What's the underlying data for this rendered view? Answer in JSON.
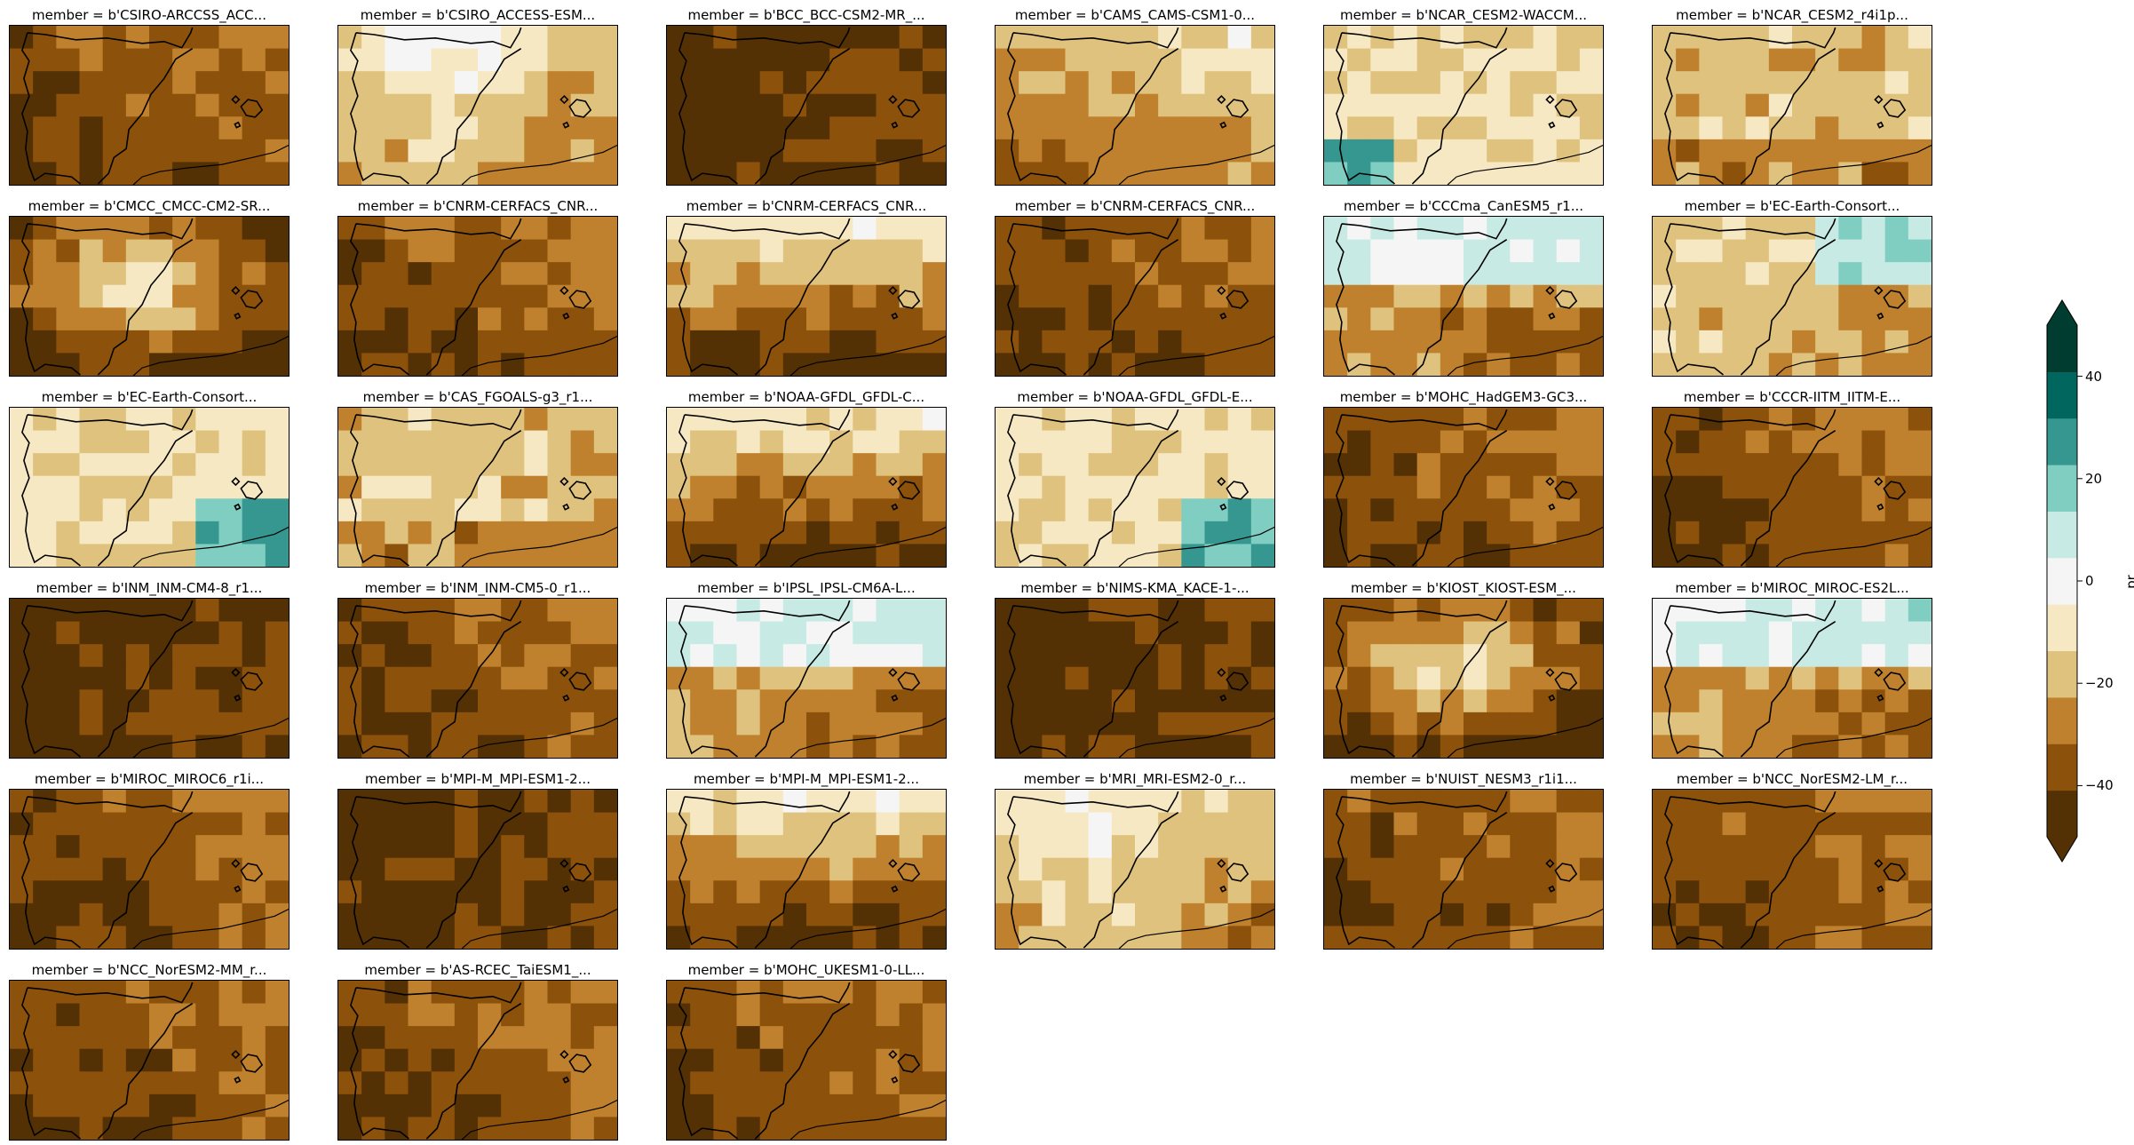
{
  "figure": {
    "panels": [
      {
        "title": "member = b'CSIRO-ARCCSS_ACC...",
        "pattern": "dry"
      },
      {
        "title": "member = b'CSIRO_ACCESS-ESM...",
        "pattern": "wetcenter"
      },
      {
        "title": "member = b'BCC_BCC-CSM2-MR_...",
        "pattern": "verydry"
      },
      {
        "title": "member = b'CAMS_CAMS-CSM1-0...",
        "pattern": "mixed"
      },
      {
        "title": "member = b'NCAR_CESM2-WACCM...",
        "pattern": "wetsw"
      },
      {
        "title": "member = b'NCAR_CESM2_r4i1p...",
        "pattern": "mild"
      },
      {
        "title": "member = b'CMCC_CMCC-CM2-SR...",
        "pattern": "centerlight"
      },
      {
        "title": "member = b'CNRM-CERFACS_CNR...",
        "pattern": "dry"
      },
      {
        "title": "member = b'CNRM-CERFACS_CNR...",
        "pattern": "southdry"
      },
      {
        "title": "member = b'CNRM-CERFACS_CNR...",
        "pattern": "dry"
      },
      {
        "title": "member = b'CCCma_CanESM5_r1...",
        "pattern": "wetnorth"
      },
      {
        "title": "member = b'EC-Earth-Consort...",
        "pattern": "wetne"
      },
      {
        "title": "member = b'EC-Earth-Consort...",
        "pattern": "wetse"
      },
      {
        "title": "member = b'CAS_FGOALS-g3_r1...",
        "pattern": "mild"
      },
      {
        "title": "member = b'NOAA-GFDL_GFDL-C...",
        "pattern": "southdry"
      },
      {
        "title": "member = b'NOAA-GFDL_GFDL-E...",
        "pattern": "wetse"
      },
      {
        "title": "member = b'MOHC_HadGEM3-GC3...",
        "pattern": "dry"
      },
      {
        "title": "member = b'CCCR-IITM_IITM-E...",
        "pattern": "dry"
      },
      {
        "title": "member = b'INM_INM-CM4-8_r1...",
        "pattern": "verydry"
      },
      {
        "title": "member = b'INM_INM-CM5-0_r1...",
        "pattern": "dry"
      },
      {
        "title": "member = b'IPSL_IPSL-CM6A-L...",
        "pattern": "wetnorth"
      },
      {
        "title": "member = b'NIMS-KMA_KACE-1-...",
        "pattern": "verydry"
      },
      {
        "title": "member = b'KIOST_KIOST-ESM_...",
        "pattern": "centerlight"
      },
      {
        "title": "member = b'MIROC_MIROC-ES2L...",
        "pattern": "wetnorth"
      },
      {
        "title": "member = b'MIROC_MIROC6_r1i...",
        "pattern": "dry"
      },
      {
        "title": "member = b'MPI-M_MPI-ESM1-2...",
        "pattern": "verydry"
      },
      {
        "title": "member = b'MPI-M_MPI-ESM1-2...",
        "pattern": "southdry"
      },
      {
        "title": "member = b'MRI_MRI-ESM2-0_r...",
        "pattern": "wetcenter"
      },
      {
        "title": "member = b'NUIST_NESM3_r1i1...",
        "pattern": "dry"
      },
      {
        "title": "member = b'NCC_NorESM2-LM_r...",
        "pattern": "dry"
      },
      {
        "title": "member = b'NCC_NorESM2-MM_r...",
        "pattern": "dry"
      },
      {
        "title": "member = b'AS-RCEC_TaiESM1_...",
        "pattern": "dry"
      },
      {
        "title": "member = b'MOHC_UKESM1-0-LL...",
        "pattern": "dry"
      }
    ]
  },
  "colorbar": {
    "label": "pr",
    "ticks": [
      "40",
      "20",
      "0",
      "−20",
      "−40"
    ],
    "tick_values": [
      40,
      20,
      0,
      -20,
      -40
    ],
    "vmin": -50,
    "vmax": 50,
    "extend": "both",
    "colormap": "BrBG",
    "colors": [
      "#543005",
      "#8c510a",
      "#bf812d",
      "#dfc27d",
      "#f6e8c3",
      "#f5f5f5",
      "#c7eae5",
      "#80cdc1",
      "#35978f",
      "#01665e",
      "#003c30"
    ]
  }
}
